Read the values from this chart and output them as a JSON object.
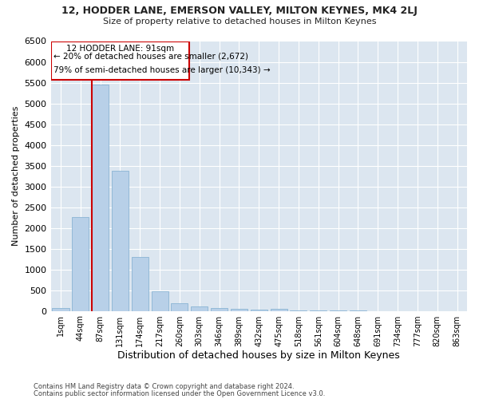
{
  "title1": "12, HODDER LANE, EMERSON VALLEY, MILTON KEYNES, MK4 2LJ",
  "title2": "Size of property relative to detached houses in Milton Keynes",
  "xlabel": "Distribution of detached houses by size in Milton Keynes",
  "ylabel": "Number of detached properties",
  "footer1": "Contains HM Land Registry data © Crown copyright and database right 2024.",
  "footer2": "Contains public sector information licensed under the Open Government Licence v3.0.",
  "annotation_title": "12 HODDER LANE: 91sqm",
  "annotation_line1": "← 20% of detached houses are smaller (2,672)",
  "annotation_line2": "79% of semi-detached houses are larger (10,343) →",
  "bar_categories": [
    "1sqm",
    "44sqm",
    "87sqm",
    "131sqm",
    "174sqm",
    "217sqm",
    "260sqm",
    "303sqm",
    "346sqm",
    "389sqm",
    "432sqm",
    "475sqm",
    "518sqm",
    "561sqm",
    "604sqm",
    "648sqm",
    "691sqm",
    "734sqm",
    "777sqm",
    "820sqm",
    "863sqm"
  ],
  "bar_values": [
    60,
    2270,
    5450,
    3380,
    1290,
    480,
    175,
    110,
    75,
    55,
    30,
    55,
    10,
    5,
    3,
    2,
    1,
    1,
    1,
    1,
    1
  ],
  "bar_color": "#b8d0e8",
  "bar_edge_color": "#8ab4d4",
  "highlight_color": "#cc0000",
  "ylim": [
    0,
    6500
  ],
  "yticks": [
    0,
    500,
    1000,
    1500,
    2000,
    2500,
    3000,
    3500,
    4000,
    4500,
    5000,
    5500,
    6000,
    6500
  ],
  "fig_bg_color": "#ffffff",
  "plot_bg_color": "#dce6f0",
  "grid_color": "#ffffff",
  "ann_box_color": "#ffffff",
  "ann_edge_color": "#cc0000"
}
